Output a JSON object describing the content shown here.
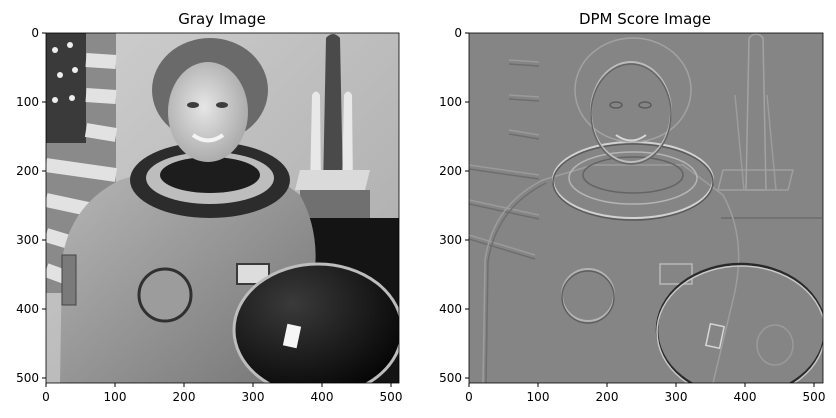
{
  "figure": {
    "panels": [
      {
        "id": "gray",
        "title": "Gray Image",
        "image_description": "grayscale portrait of an astronaut in a spacesuit holding a helmet, US flag on the left and a space shuttle model on the right",
        "image_extent": [
          0,
          512
        ],
        "xticks": [
          "0",
          "100",
          "200",
          "300",
          "400",
          "500"
        ],
        "yticks": [
          "0",
          "100",
          "200",
          "300",
          "400",
          "500"
        ]
      },
      {
        "id": "dpm",
        "title": "DPM Score Image",
        "image_description": "embossed edge-response map of the same astronaut photo on a mid-gray background",
        "image_extent": [
          0,
          512
        ],
        "xticks": [
          "0",
          "100",
          "200",
          "300",
          "400",
          "500"
        ],
        "yticks": [
          "0",
          "100",
          "200",
          "300",
          "400",
          "500"
        ]
      }
    ]
  }
}
